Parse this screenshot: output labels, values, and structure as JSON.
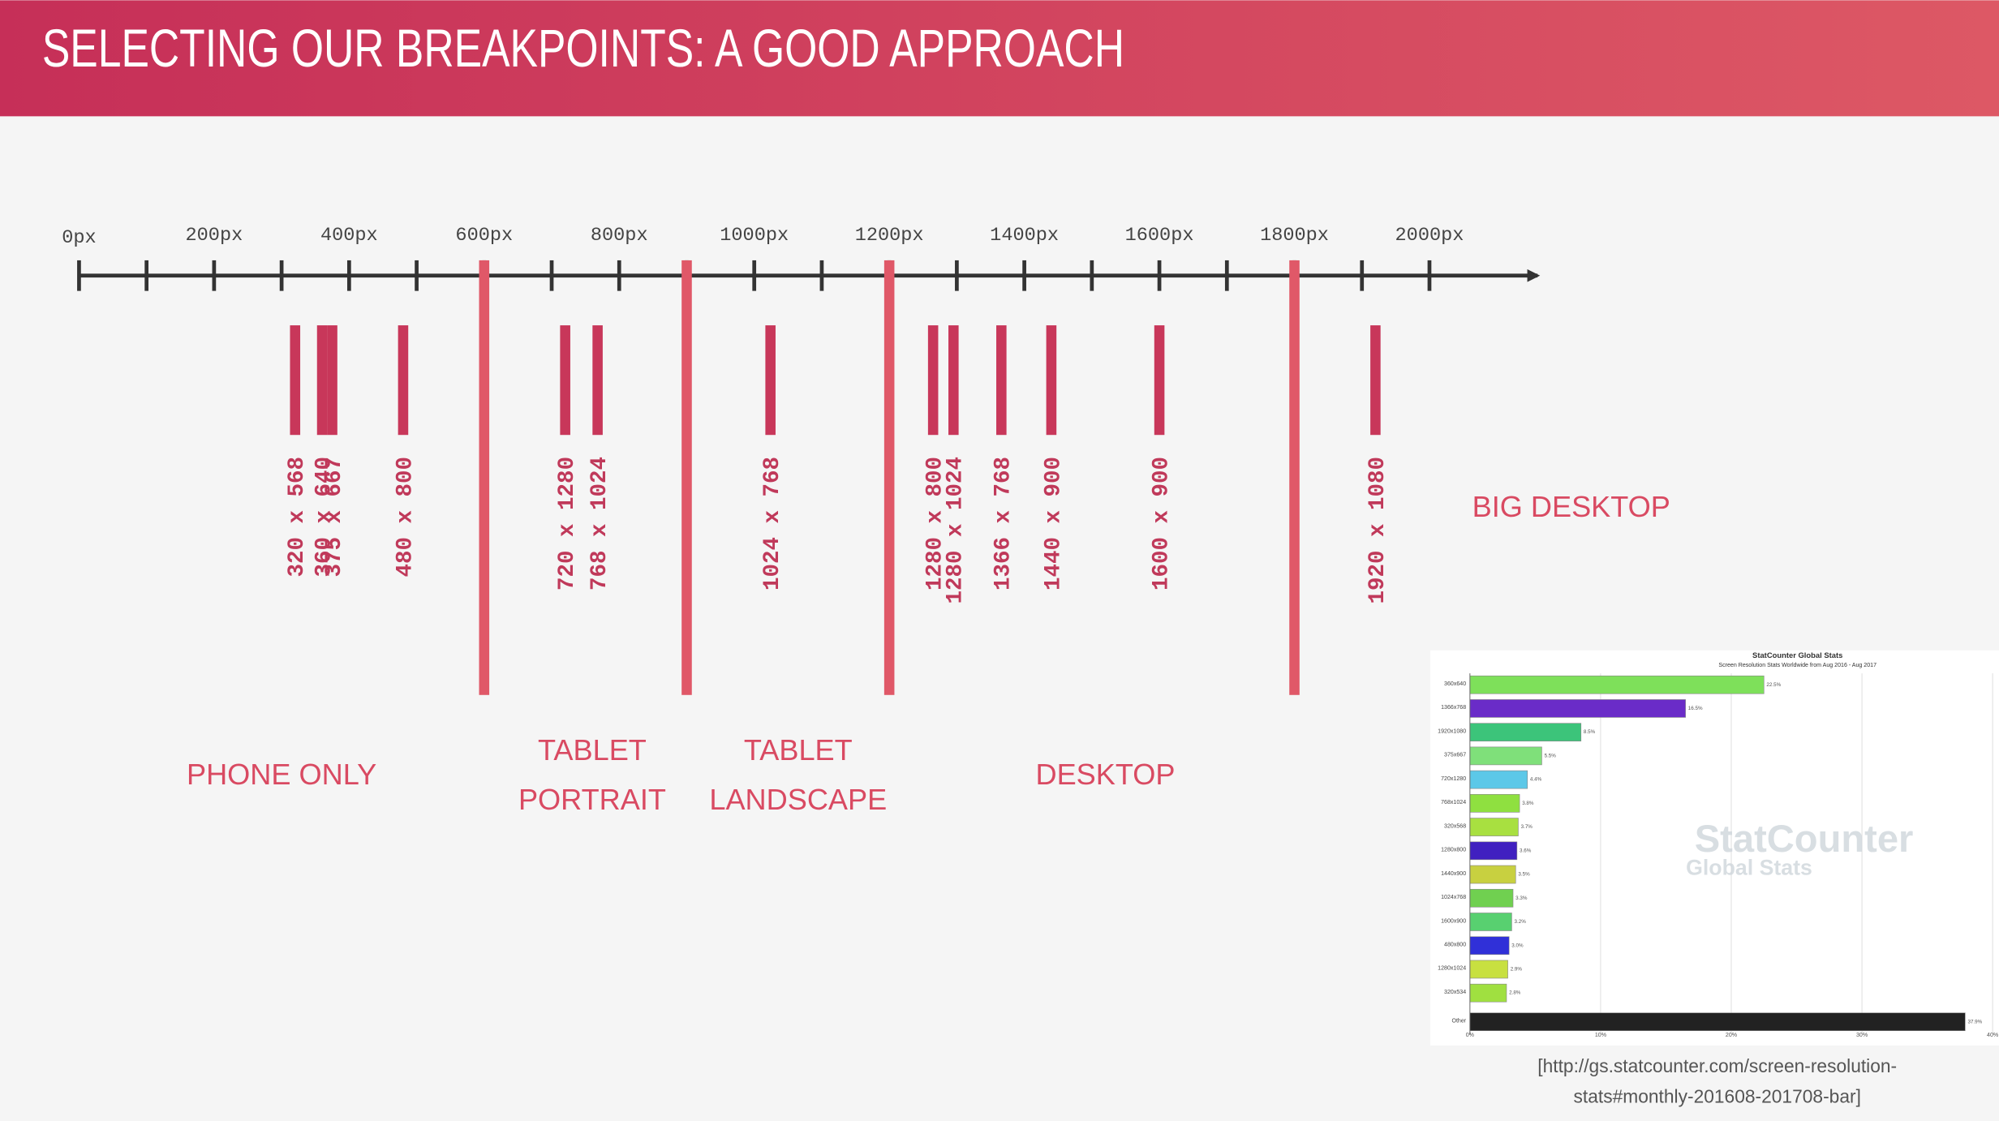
{
  "header": {
    "title": "SELECTING OUR BREAKPOINTS: A GOOD APPROACH"
  },
  "timeline": {
    "xlim": [
      0,
      2160
    ],
    "ticks": [
      0,
      100,
      200,
      300,
      400,
      500,
      600,
      700,
      800,
      900,
      1000,
      1100,
      1200,
      1300,
      1400,
      1500,
      1600,
      1700,
      1800,
      1900,
      2000
    ],
    "tick_labels": [
      {
        "value": 0,
        "label": "0px"
      },
      {
        "value": 200,
        "label": "200px"
      },
      {
        "value": 400,
        "label": "400px"
      },
      {
        "value": 600,
        "label": "600px"
      },
      {
        "value": 800,
        "label": "800px"
      },
      {
        "value": 1000,
        "label": "1000px"
      },
      {
        "value": 1200,
        "label": "1200px"
      },
      {
        "value": 1400,
        "label": "1400px"
      },
      {
        "value": 1600,
        "label": "1600px"
      },
      {
        "value": 1800,
        "label": "1800px"
      },
      {
        "value": 2000,
        "label": "2000px"
      }
    ],
    "breakpoints": [
      600,
      900,
      1200,
      1800
    ],
    "resolutions": [
      {
        "width": 320,
        "label": "320 x 568"
      },
      {
        "width": 360,
        "label": "360 x 640"
      },
      {
        "width": 375,
        "label": "375 x 667"
      },
      {
        "width": 480,
        "label": "480 x 800"
      },
      {
        "width": 720,
        "label": "720 x 1280"
      },
      {
        "width": 768,
        "label": "768 x 1024"
      },
      {
        "width": 1024,
        "label": "1024 x 768"
      },
      {
        "width": 1280,
        "label": "1280 x 800"
      },
      {
        "width": 1280,
        "label": "1280 x 1024"
      },
      {
        "width": 1366,
        "label": "1366 x 768"
      },
      {
        "width": 1440,
        "label": "1440 x 900"
      },
      {
        "width": 1600,
        "label": "1600 x 900"
      },
      {
        "width": 1920,
        "label": "1920 x 1080"
      }
    ],
    "regions": [
      {
        "lines": [
          "PHONE ONLY"
        ],
        "at": 300
      },
      {
        "lines": [
          "TABLET",
          "PORTRAIT"
        ],
        "at": 760
      },
      {
        "lines": [
          "TABLET",
          "LANDSCAPE"
        ],
        "at": 1065
      },
      {
        "lines": [
          "DESKTOP"
        ],
        "at": 1520
      },
      {
        "lines": [
          "BIG DESKTOP"
        ],
        "at": 2210
      }
    ]
  },
  "chart_data": {
    "type": "bar",
    "title": "StatCounter Global Stats",
    "subtitle": "Screen Resolution Stats Worldwide from Aug 2016 - Aug 2017",
    "watermark": [
      "StatCounter",
      "Global Stats"
    ],
    "categories": [
      "360x640",
      "1366x768",
      "1920x1080",
      "375x667",
      "720x1280",
      "768x1024",
      "320x568",
      "1280x800",
      "1440x900",
      "1024x768",
      "1600x900",
      "480x800",
      "1280x1024",
      "320x534",
      "Other"
    ],
    "values": [
      22.5,
      16.5,
      8.5,
      5.5,
      4.4,
      3.8,
      3.7,
      3.6,
      3.5,
      3.3,
      3.2,
      3.0,
      2.9,
      2.8,
      37.9
    ],
    "value_labels": [
      "22.5%",
      "16.5%",
      "8.5%",
      "5.5%",
      "4.4%",
      "3.8%",
      "3.7%",
      "3.6%",
      "3.5%",
      "3.3%",
      "3.2%",
      "3.0%",
      "2.9%",
      "2.8%",
      "37.9%"
    ],
    "colors": [
      "#7ee05a",
      "#6a2cc8",
      "#3cc47a",
      "#7fe07a",
      "#5cc8e8",
      "#8fe040",
      "#a8e040",
      "#4020c0",
      "#c8d040",
      "#70d050",
      "#58d070",
      "#3030d8",
      "#c8e040",
      "#a0e040",
      "#222222"
    ],
    "xlim": [
      0,
      40
    ],
    "xticks": [
      {
        "value": 0,
        "label": "0%"
      },
      {
        "value": 10,
        "label": "10%"
      },
      {
        "value": 20,
        "label": "20%"
      },
      {
        "value": 30,
        "label": "30%"
      },
      {
        "value": 40,
        "label": "40%"
      }
    ],
    "grid": true
  },
  "caption": [
    "[http://gs.statcounter.com/screen-resolution-",
    "stats#monthly-201608-201708-bar]"
  ]
}
